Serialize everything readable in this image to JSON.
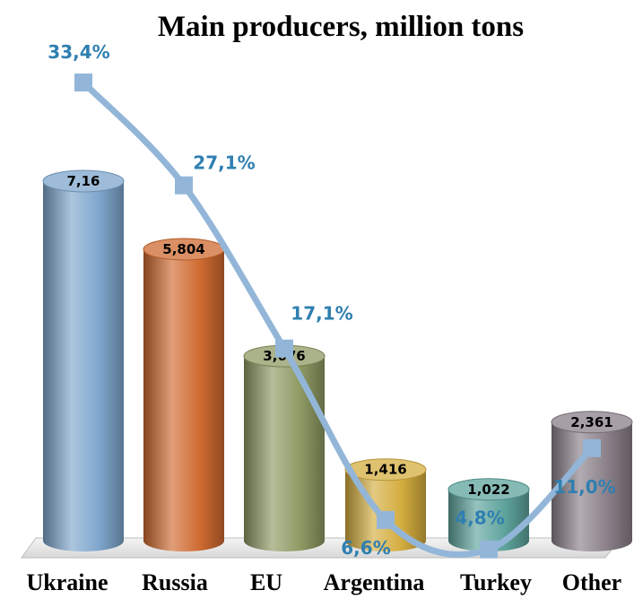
{
  "chart_data": {
    "type": "bar",
    "title": "Main producers, million tons",
    "categories": [
      "Ukraine",
      "Russia",
      "EU",
      "Argentina",
      "Turkey",
      "Other"
    ],
    "series": [
      {
        "values": [
          7.16,
          5.804,
          3.676,
          1.416,
          1.022,
          2.361
        ],
        "labels": [
          "7,16",
          "5,804",
          "3,676",
          "1,416",
          "1,022",
          "2,361"
        ],
        "colors": [
          "#7ea6cc",
          "#cf6a30",
          "#8e9a63",
          "#d4ad3f",
          "#5ea39c",
          "#8a7f88"
        ]
      },
      {
        "type": "line",
        "values": [
          33.4,
          27.1,
          17.1,
          6.6,
          4.8,
          11.0
        ],
        "labels": [
          "33,4%",
          "27,1%",
          "17,1%",
          "6,6%",
          "4,8%",
          "11,0%"
        ],
        "color": "#93b6d8"
      }
    ],
    "ylim": [
      0,
      8.5
    ],
    "ylim_secondary": [
      0,
      40
    ]
  }
}
